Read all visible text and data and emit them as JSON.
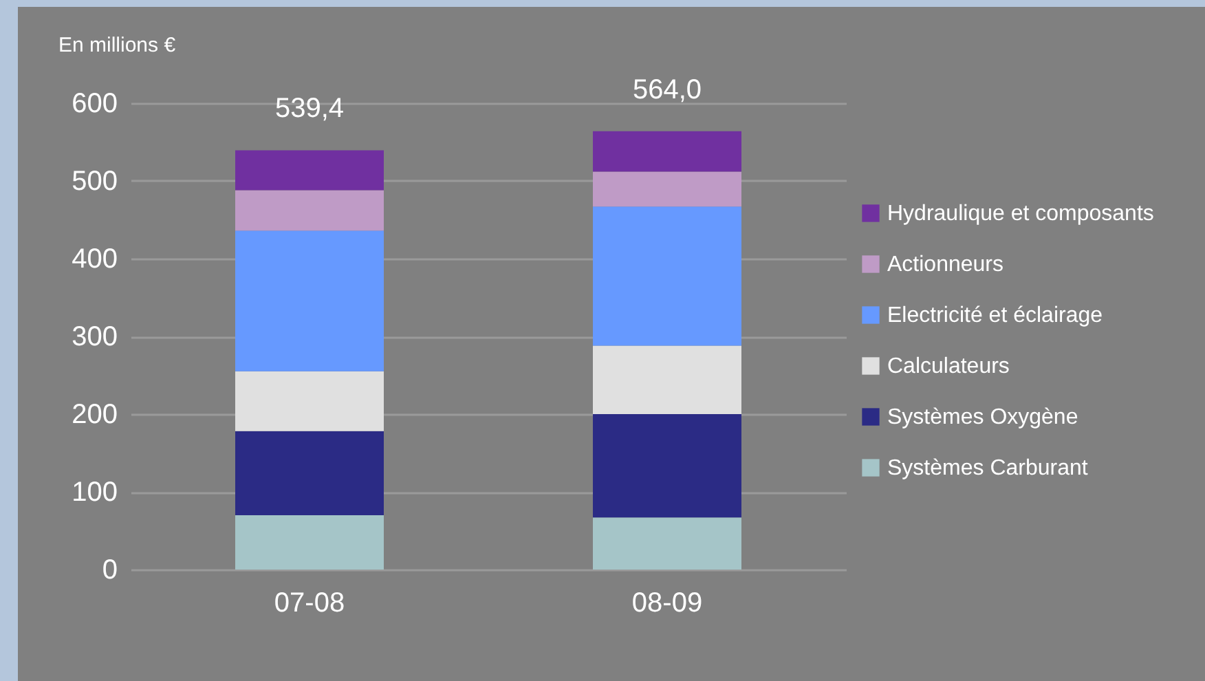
{
  "chart_data": {
    "type": "bar",
    "ylabel": "En millions €",
    "categories": [
      "07-08",
      "08-09"
    ],
    "stacked": true,
    "series": [
      {
        "name": "Systèmes Carburant",
        "color": "#a5c5c8",
        "values": [
          70,
          67
        ]
      },
      {
        "name": "Systèmes Oxygène",
        "color": "#2b2b85",
        "values": [
          108,
          133
        ]
      },
      {
        "name": "Calculateurs",
        "color": "#e0e0e0",
        "values": [
          77,
          88
        ]
      },
      {
        "name": "Electricité et éclairage",
        "color": "#6699ff",
        "values": [
          181,
          179
        ]
      },
      {
        "name": "Actionneurs",
        "color": "#bf9bc6",
        "values": [
          52,
          45
        ]
      },
      {
        "name": "Hydraulique et composants",
        "color": "#7030a0",
        "values": [
          51.4,
          52
        ]
      }
    ],
    "totals": [
      "539,4",
      "564,0"
    ],
    "ylim": [
      0,
      600
    ],
    "yticks": [
      0,
      100,
      200,
      300,
      400,
      500,
      600
    ],
    "grid": "y",
    "legend": "right"
  }
}
